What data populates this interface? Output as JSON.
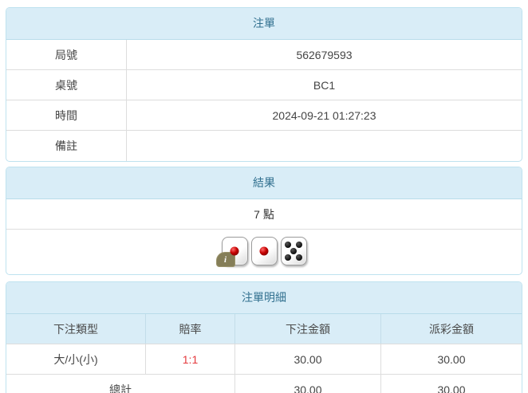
{
  "colors": {
    "heading_bg": "#d9edf7",
    "heading_text": "#31708f",
    "panel_border": "#bfe2ef",
    "row_border": "#dddddd",
    "odds_red": "#e4393c",
    "info_badge": "#857e58"
  },
  "bet_slip": {
    "title": "注單",
    "rows": [
      {
        "label": "局號",
        "value": "562679593"
      },
      {
        "label": "桌號",
        "value": "BC1"
      },
      {
        "label": "時間",
        "value": "2024-09-21 01:27:23"
      },
      {
        "label": "備註",
        "value": ""
      }
    ]
  },
  "result": {
    "title": "結果",
    "points": "7 點",
    "dice": [
      1,
      1,
      5
    ],
    "info_icon_label": "i"
  },
  "detail": {
    "title": "注單明細",
    "columns": [
      "下注類型",
      "賠率",
      "下注金額",
      "派彩金額"
    ],
    "rows": [
      {
        "bet_type": "大/小(小)",
        "odds": "1:1",
        "bet_amount": "30.00",
        "payout": "30.00"
      }
    ],
    "total": {
      "label": "總計",
      "bet_amount": "30.00",
      "payout": "30.00"
    }
  }
}
